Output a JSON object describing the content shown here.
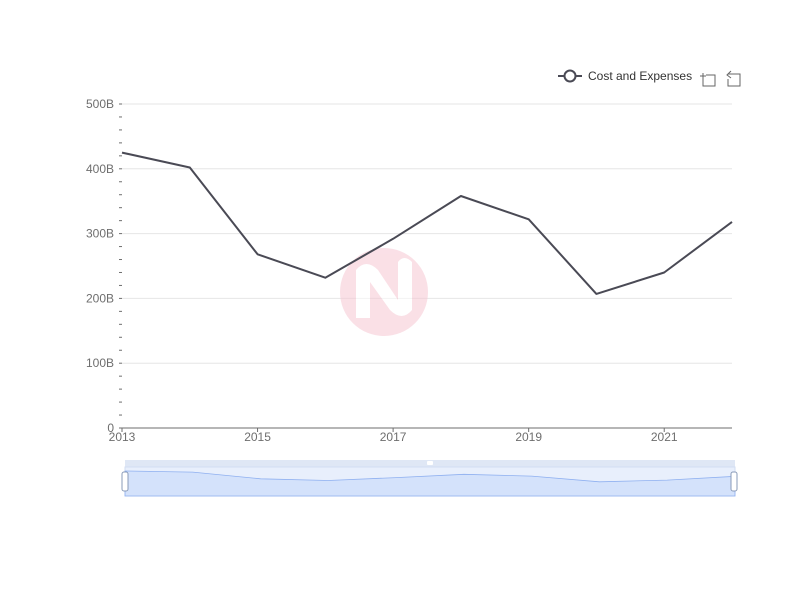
{
  "chart_data": {
    "type": "line",
    "title": "",
    "xlabel": "",
    "ylabel": "",
    "x": [
      2013,
      2014,
      2015,
      2016,
      2017,
      2018,
      2019,
      2020,
      2021,
      2022
    ],
    "series": [
      {
        "name": "Cost and Expenses",
        "values": [
          425,
          402,
          268,
          232,
          292,
          358,
          322,
          207,
          240,
          318
        ]
      }
    ],
    "unit_suffix": "B",
    "xlim": [
      2013,
      2022
    ],
    "ylim": [
      0,
      500
    ],
    "x_tick_labels": [
      "2013",
      "2015",
      "2017",
      "2019",
      "2021"
    ],
    "y_tick_labels": [
      "0",
      "100B",
      "200B",
      "300B",
      "400B",
      "500B"
    ],
    "legend_position": "top-right",
    "grid": true,
    "has_datazoom_slider": true
  },
  "legend": {
    "label": "Cost and Expenses"
  },
  "toolbox": {
    "items": [
      "zoom-icon",
      "zoom-reset-icon"
    ]
  },
  "colors": {
    "series": "#4a4a55",
    "grid": "#e6e6e6",
    "axis": "#6e6e6e",
    "slider_fill": "#d4e2fb",
    "slider_line": "#8fb0f0",
    "slider_bg": "#e8effc",
    "watermark_a": "#f7b8c8",
    "watermark_b": "#fcd9e0"
  }
}
